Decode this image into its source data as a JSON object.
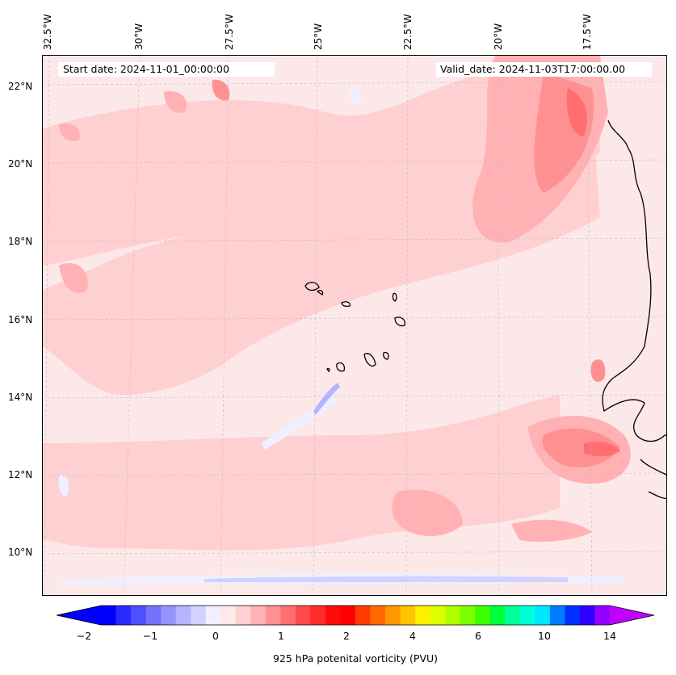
{
  "map": {
    "start_date": "Start date: 2024-11-01_00:00:00",
    "valid_date": "Valid_date: 2024-11-03T17:00:00.00",
    "lon_labels": [
      "32.5°W",
      "30°W",
      "27.5°W",
      "25°W",
      "22.5°W",
      "20°W",
      "17.5°W"
    ],
    "lat_labels": [
      "22°N",
      "20°N",
      "18°N",
      "16°N",
      "14°N",
      "12°N",
      "10°N"
    ],
    "background_color": "#fde8e9",
    "coast_color": "#000000"
  },
  "colorbar": {
    "title": "925 hPa potenital vorticity (PVU)",
    "tick_labels": [
      "−2",
      "−1",
      "0",
      "1",
      "2",
      "4",
      "6",
      "10",
      "14"
    ],
    "colors": [
      "#0000ff",
      "#2a2aff",
      "#4f4fff",
      "#7272ff",
      "#9494ff",
      "#b4b4ff",
      "#d2d2ff",
      "#efefff",
      "#ffe8e9",
      "#ffd0d1",
      "#ffb1b3",
      "#ff9092",
      "#ff6e70",
      "#ff4a4c",
      "#ff2a2c",
      "#ff0a0c",
      "#ff0000",
      "#ff3c00",
      "#ff6a00",
      "#ff9800",
      "#ffc400",
      "#fff000",
      "#dcff00",
      "#b0ff00",
      "#7cff00",
      "#3cff00",
      "#00ff3a",
      "#00ff9a",
      "#00ffd8",
      "#00e6ff",
      "#007cff",
      "#0030ff",
      "#3000ff",
      "#9600ff"
    ],
    "under_color": "#0000ff",
    "over_color": "#c000ff"
  }
}
